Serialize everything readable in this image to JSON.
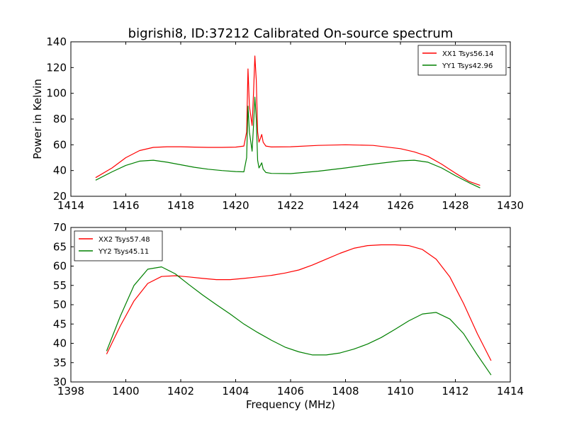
{
  "figure": {
    "title": "bigrishi8, ID:37212 Calibrated On-source spectrum"
  },
  "colors": {
    "red": "#ff0000",
    "green": "#008000"
  },
  "chart_data": [
    {
      "type": "line",
      "title": "bigrishi8, ID:37212 Calibrated On-source spectrum",
      "xlabel": "",
      "ylabel": "Power in Kelvin",
      "xlim": [
        1414,
        1430
      ],
      "ylim": [
        20,
        140
      ],
      "xticks": [
        1414,
        1416,
        1418,
        1420,
        1422,
        1424,
        1426,
        1428,
        1430
      ],
      "yticks": [
        20,
        40,
        60,
        80,
        100,
        120,
        140
      ],
      "legend_position": "top-right",
      "series": [
        {
          "name": "XX1 Tsys56.14",
          "color": "#ff0000",
          "x": [
            1414.9,
            1415.5,
            1416.0,
            1416.5,
            1417.0,
            1417.5,
            1418.0,
            1418.5,
            1419.0,
            1419.5,
            1420.0,
            1420.3,
            1420.4,
            1420.45,
            1420.5,
            1420.6,
            1420.65,
            1420.7,
            1420.75,
            1420.8,
            1420.85,
            1420.9,
            1420.95,
            1421.0,
            1421.1,
            1421.3,
            1422.0,
            1423.0,
            1424.0,
            1425.0,
            1426.0,
            1426.5,
            1427.0,
            1427.5,
            1428.0,
            1428.5,
            1428.9
          ],
          "y": [
            34.5,
            42,
            50,
            55.5,
            58,
            58.5,
            58.5,
            58.2,
            58,
            58,
            58.2,
            59,
            70,
            119,
            90,
            75,
            100,
            129,
            110,
            70,
            62,
            65,
            68,
            62,
            59,
            58.3,
            58.5,
            59.5,
            60,
            59.5,
            57,
            54.5,
            51,
            45,
            38,
            31.5,
            28.5
          ]
        },
        {
          "name": "YY1 Tsys42.96",
          "color": "#008000",
          "x": [
            1414.9,
            1415.5,
            1416.0,
            1416.5,
            1417.0,
            1417.5,
            1418.0,
            1418.5,
            1419.0,
            1419.5,
            1420.0,
            1420.3,
            1420.4,
            1420.45,
            1420.5,
            1420.6,
            1420.65,
            1420.7,
            1420.75,
            1420.8,
            1420.85,
            1420.9,
            1420.95,
            1421.0,
            1421.1,
            1421.3,
            1422.0,
            1423.0,
            1424.0,
            1425.0,
            1426.0,
            1426.5,
            1427.0,
            1427.5,
            1428.0,
            1428.5,
            1428.9
          ],
          "y": [
            32.5,
            39,
            44,
            47.3,
            48,
            46.5,
            44.5,
            42.5,
            41,
            40,
            39.2,
            39,
            50,
            90,
            70,
            55,
            75,
            97,
            80,
            48,
            42,
            44,
            46,
            41,
            38.5,
            37.8,
            37.6,
            39.5,
            42,
            45,
            47.5,
            48,
            46.5,
            42,
            36,
            30.5,
            26.5
          ]
        }
      ]
    },
    {
      "type": "line",
      "title": "",
      "xlabel": "Frequency (MHz)",
      "ylabel": "",
      "xlim": [
        1398,
        1414
      ],
      "ylim": [
        30,
        70
      ],
      "xticks": [
        1398,
        1400,
        1402,
        1404,
        1406,
        1408,
        1410,
        1412,
        1414
      ],
      "yticks": [
        30,
        35,
        40,
        45,
        50,
        55,
        60,
        65,
        70
      ],
      "legend_position": "top-left",
      "series": [
        {
          "name": "XX2 Tsys57.48",
          "color": "#ff0000",
          "x": [
            1399.3,
            1399.8,
            1400.3,
            1400.8,
            1401.3,
            1401.8,
            1402.3,
            1402.8,
            1403.3,
            1403.8,
            1404.3,
            1404.8,
            1405.3,
            1405.8,
            1406.3,
            1406.8,
            1407.3,
            1407.8,
            1408.3,
            1408.8,
            1409.3,
            1409.8,
            1410.3,
            1410.8,
            1411.3,
            1411.8,
            1412.3,
            1412.8,
            1413.3
          ],
          "y": [
            37.2,
            44.5,
            51,
            55.5,
            57.3,
            57.5,
            57.2,
            56.8,
            56.5,
            56.5,
            56.8,
            57.2,
            57.6,
            58.2,
            59,
            60.3,
            61.8,
            63.3,
            64.6,
            65.3,
            65.5,
            65.5,
            65.3,
            64.3,
            61.8,
            57.2,
            50.3,
            42.5,
            35.5
          ]
        },
        {
          "name": "YY2 Tsys45.11",
          "color": "#008000",
          "x": [
            1399.3,
            1399.8,
            1400.3,
            1400.8,
            1401.3,
            1401.8,
            1402.3,
            1402.8,
            1403.3,
            1403.8,
            1404.3,
            1404.8,
            1405.3,
            1405.8,
            1406.3,
            1406.8,
            1407.3,
            1407.8,
            1408.3,
            1408.8,
            1409.3,
            1409.8,
            1410.3,
            1410.8,
            1411.3,
            1411.8,
            1412.3,
            1412.8,
            1413.3
          ],
          "y": [
            38,
            47,
            55,
            59.2,
            59.8,
            58,
            55.2,
            52.5,
            50,
            47.6,
            45,
            42.8,
            40.8,
            39,
            37.8,
            37,
            37,
            37.5,
            38.5,
            39.8,
            41.5,
            43.6,
            45.8,
            47.6,
            48,
            46.3,
            42.5,
            37,
            31.8
          ]
        }
      ]
    }
  ]
}
